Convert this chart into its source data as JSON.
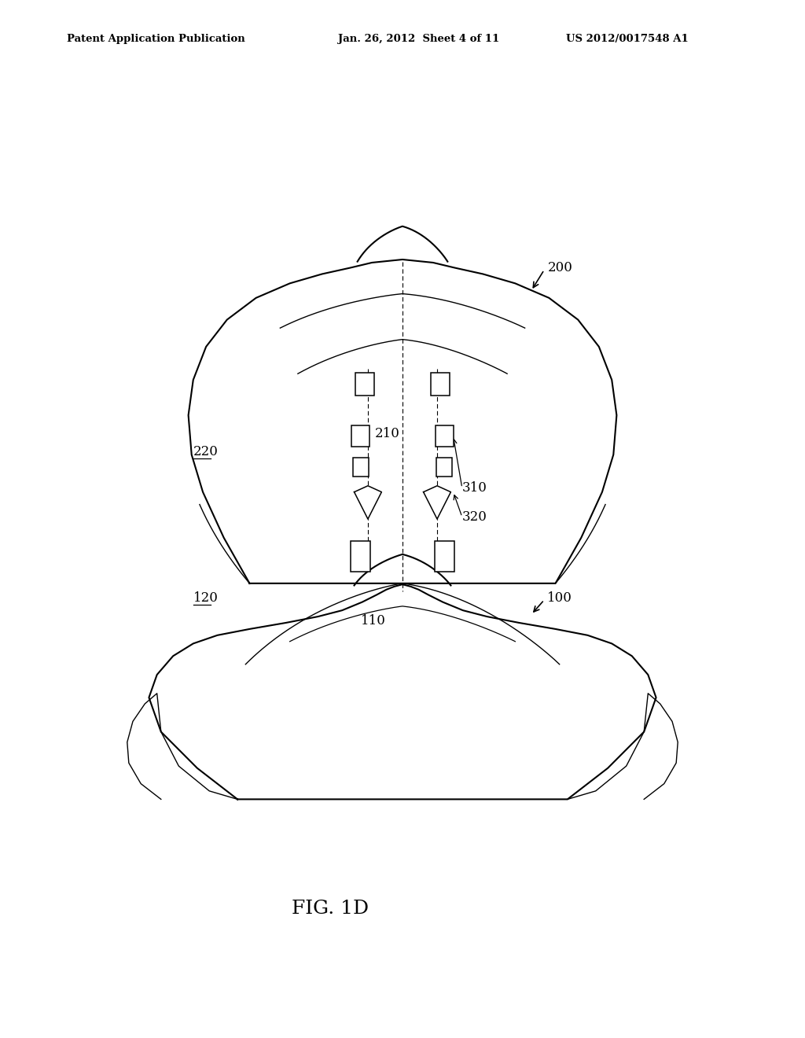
{
  "bg_color": "#ffffff",
  "line_color": "#000000",
  "header_left": "Patent Application Publication",
  "header_center": "Jan. 26, 2012  Sheet 4 of 11",
  "header_right": "US 2012/0017548 A1",
  "figure_label": "FIG. 1D",
  "lw_main": 1.5,
  "lw_thin": 1.0,
  "lw_inner": 0.9
}
